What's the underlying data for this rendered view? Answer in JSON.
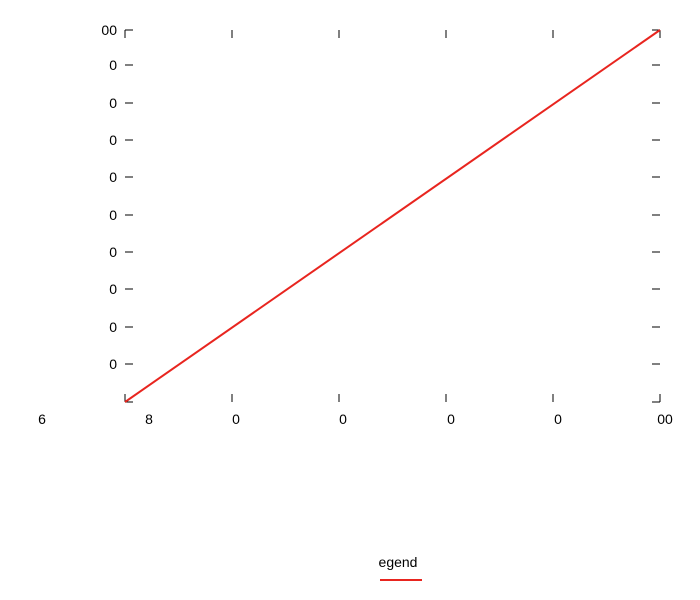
{
  "chart_data": {
    "type": "line",
    "title": "",
    "xlabel": "",
    "ylabel": "",
    "x": [
      0,
      1
    ],
    "series": [
      {
        "name": "egend",
        "color": "#e8251f",
        "values": [
          0,
          1
        ]
      }
    ],
    "xlim": [
      0,
      1
    ],
    "ylim": [
      0,
      1
    ],
    "x_tick_labels": [
      "6",
      "8",
      "0",
      "0",
      "0",
      "0",
      "00"
    ],
    "y_tick_labels": [
      "00",
      "0",
      "0",
      "0",
      "0",
      "0",
      "0",
      "0",
      "0",
      "0"
    ],
    "grid": false,
    "legend_position": "bottom-center"
  }
}
